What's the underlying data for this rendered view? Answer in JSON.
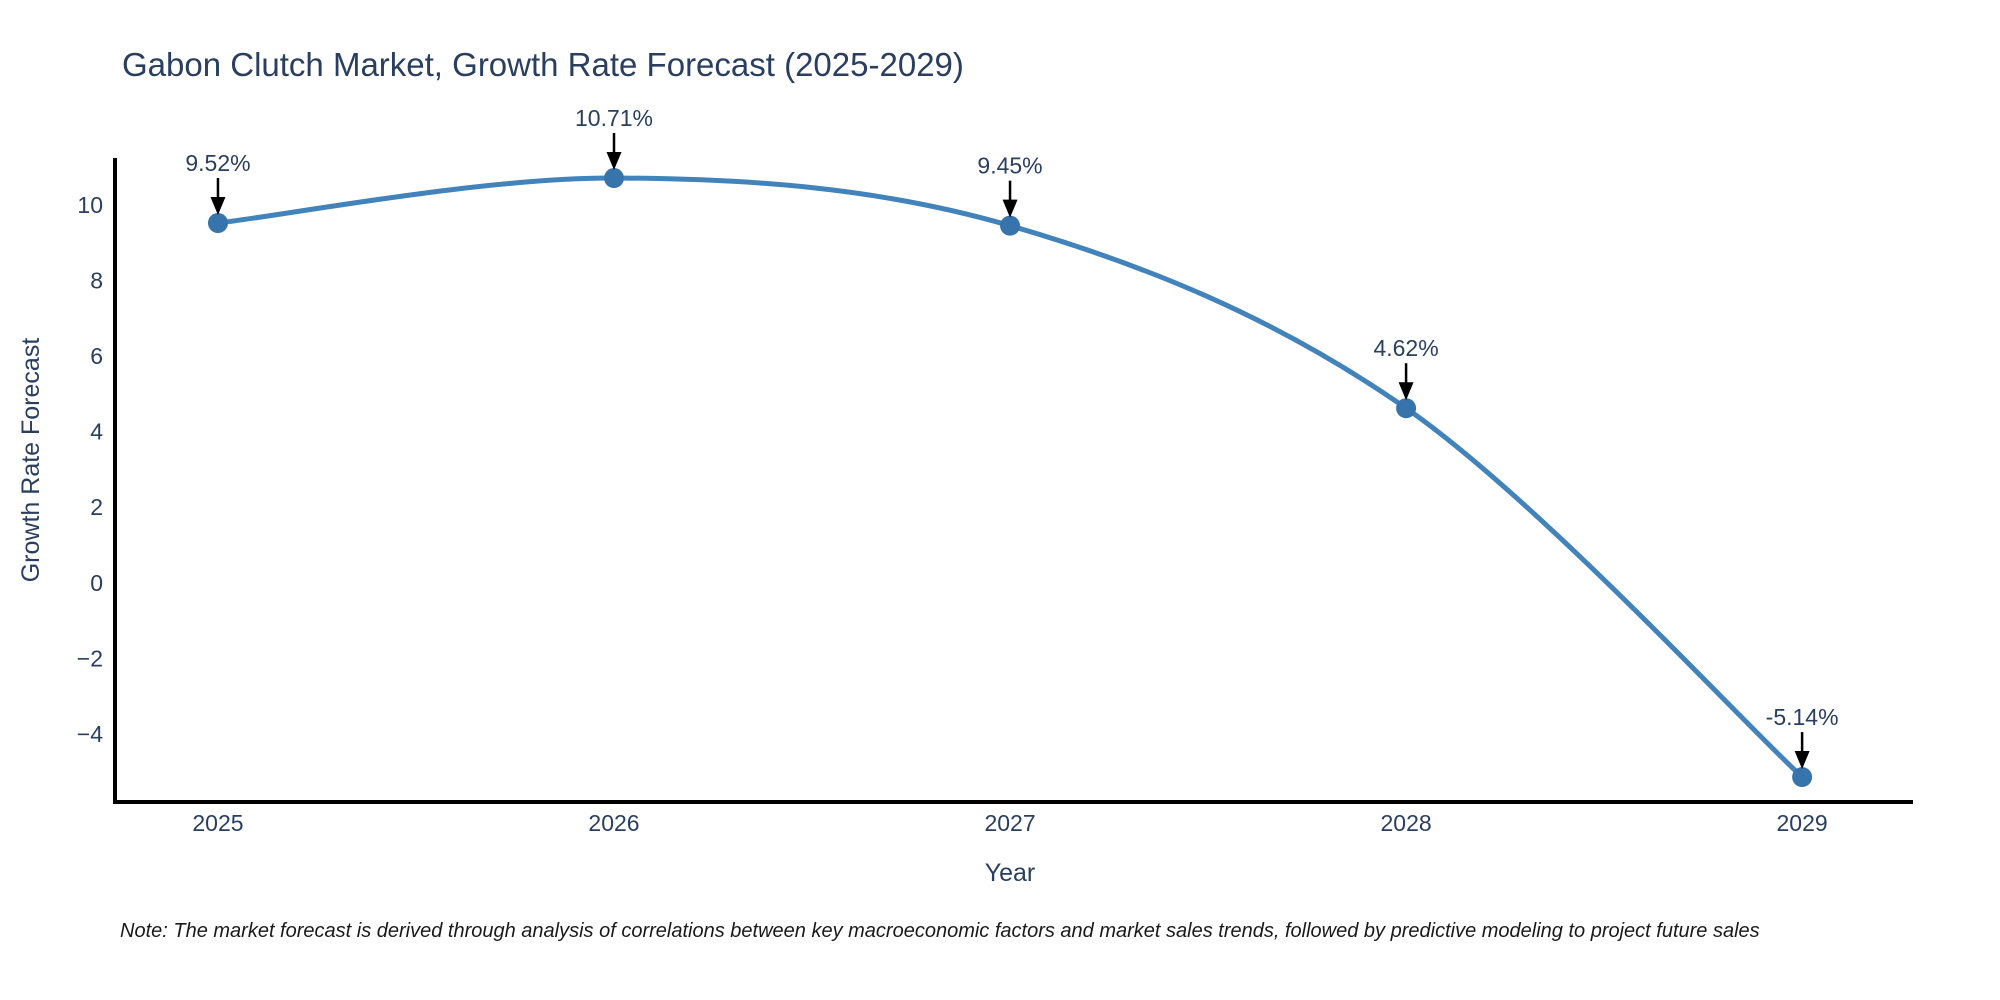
{
  "title": "Gabon Clutch Market, Growth Rate Forecast (2025-2029)",
  "note": "Note: The market forecast is derived through analysis of correlations between key macroeconomic factors and market sales trends, followed by predictive modeling to project future sales",
  "colors": {
    "line": "#4183ba",
    "marker": "#3674ab",
    "axis": "#000000",
    "text": "#2a3f5f",
    "annotation": "#2a3f5f",
    "arrow": "#000000",
    "background": "#ffffff"
  },
  "chart_data": {
    "type": "line",
    "title": "Gabon Clutch Market, Growth Rate Forecast (2025-2029)",
    "xlabel": "Year",
    "ylabel": "Growth Rate Forecast",
    "x": [
      2025,
      2026,
      2027,
      2028,
      2029
    ],
    "values": [
      9.52,
      10.71,
      9.45,
      4.62,
      -5.14
    ],
    "point_labels": [
      "9.52%",
      "10.71%",
      "9.45%",
      "4.62%",
      "-5.14%"
    ],
    "x_tick_labels": [
      "2025",
      "2026",
      "2027",
      "2028",
      "2029"
    ],
    "y_ticks": [
      10,
      8,
      6,
      4,
      2,
      0,
      -2,
      -4
    ],
    "y_tick_labels": [
      "10",
      "8",
      "6",
      "4",
      "2",
      "0",
      "−2",
      "−4"
    ],
    "xlim": [
      2024.74,
      2029.28
    ],
    "ylim": [
      -5.8,
      11.24
    ],
    "grid": false,
    "legend": null,
    "line_shape": "spline",
    "marker": "circle"
  }
}
